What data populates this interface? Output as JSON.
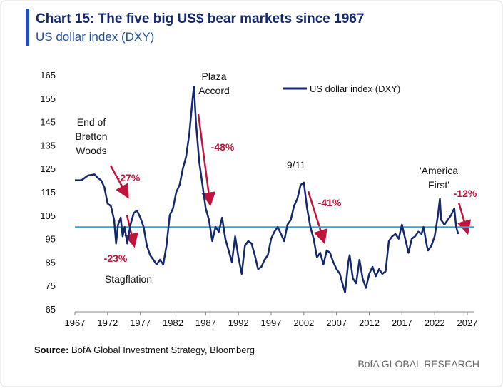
{
  "chart_data": {
    "type": "line",
    "title": "Chart 15: The five big US$ bear markets since 1967",
    "subtitle": "US dollar index (DXY)",
    "source_label": "Source:",
    "source_text": "BofA Global Investment Strategy, Bloomberg",
    "footer": "BofA GLOBAL RESEARCH",
    "xlim": [
      1967,
      2028
    ],
    "xticks": [
      1967,
      1972,
      1977,
      1982,
      1987,
      1992,
      1997,
      2002,
      2007,
      2012,
      2017,
      2022,
      2027
    ],
    "ylim": [
      65,
      165
    ],
    "yticks": [
      65,
      75,
      85,
      95,
      105,
      115,
      125,
      135,
      145,
      155,
      165
    ],
    "reference_line": {
      "value": 100,
      "color": "#29a9e0"
    },
    "legend": "top-right",
    "annotations": [
      {
        "lines": [
          "Plaza",
          "Accord"
        ]
      },
      {
        "lines": [
          "End of",
          "Bretton",
          "Woods"
        ]
      },
      {
        "lines": [
          "Stagflation"
        ]
      },
      {
        "lines": [
          "9/11"
        ]
      },
      {
        "lines": [
          "'America",
          "First'"
        ]
      }
    ],
    "change_labels": [
      "-27%",
      "-23%",
      "-48%",
      "-41%",
      "-12%"
    ],
    "x": [
      1967,
      1968,
      1969,
      1970,
      1970.5,
      1971,
      1971.5,
      1972,
      1972.5,
      1973,
      1973.3,
      1973.6,
      1974,
      1974.3,
      1974.6,
      1975,
      1975.5,
      1976,
      1976.5,
      1977,
      1977.5,
      1978,
      1978.5,
      1979,
      1979.5,
      1980,
      1980.5,
      1981,
      1981.5,
      1982,
      1982.5,
      1983,
      1983.5,
      1984,
      1984.5,
      1985,
      1985.2,
      1985.5,
      1986,
      1986.5,
      1987,
      1987.5,
      1988,
      1988.5,
      1989,
      1989.5,
      1990,
      1990.5,
      1991,
      1991.5,
      1992,
      1992.5,
      1993,
      1993.5,
      1994,
      1994.5,
      1995,
      1995.5,
      1996,
      1996.5,
      1997,
      1997.5,
      1998,
      1998.5,
      1999,
      1999.5,
      2000,
      2000.5,
      2001,
      2001.5,
      2002,
      2002.5,
      2003,
      2003.5,
      2004,
      2004.5,
      2005,
      2005.5,
      2006,
      2006.5,
      2007,
      2007.5,
      2008,
      2008.3,
      2008.8,
      2009,
      2009.5,
      2010,
      2010.5,
      2011,
      2011.5,
      2012,
      2012.5,
      2013,
      2013.5,
      2014,
      2014.5,
      2015,
      2015.5,
      2016,
      2016.5,
      2017,
      2017.5,
      2018,
      2018.5,
      2019,
      2019.5,
      2020,
      2020.3,
      2020.8,
      2021,
      2021.5,
      2022,
      2022.5,
      2022.8,
      2023,
      2023.5,
      2024,
      2024.5,
      2025,
      2025.3,
      2025.6
    ],
    "series": [
      {
        "name": "US dollar index (DXY)",
        "color": "#14286e",
        "values": [
          120,
          120,
          122,
          122.5,
          121,
          120,
          117,
          110,
          109,
          103,
          93,
          101,
          104,
          96,
          100,
          93,
          101,
          106,
          107,
          104,
          100,
          92,
          88,
          86,
          84,
          86,
          84,
          92,
          105,
          108,
          115,
          118,
          125,
          130,
          140,
          155,
          160,
          145,
          128,
          118,
          108,
          103,
          94,
          100,
          98,
          104,
          95,
          90,
          85,
          96,
          87,
          80,
          92,
          94,
          93,
          88,
          82,
          83,
          86,
          88,
          95,
          98,
          100,
          97,
          94,
          101,
          103,
          109,
          112,
          118,
          119,
          108,
          100,
          95,
          87,
          89,
          84,
          90,
          89,
          85,
          82,
          80,
          75,
          72,
          85,
          88,
          78,
          76,
          86,
          78,
          74,
          80,
          83,
          79,
          82,
          80,
          81,
          94,
          96,
          97,
          95,
          101,
          95,
          89,
          95,
          96,
          98,
          97,
          100,
          92,
          90,
          92,
          96,
          105,
          112,
          103,
          101,
          103,
          105,
          108,
          100,
          97
        ]
      }
    ]
  }
}
